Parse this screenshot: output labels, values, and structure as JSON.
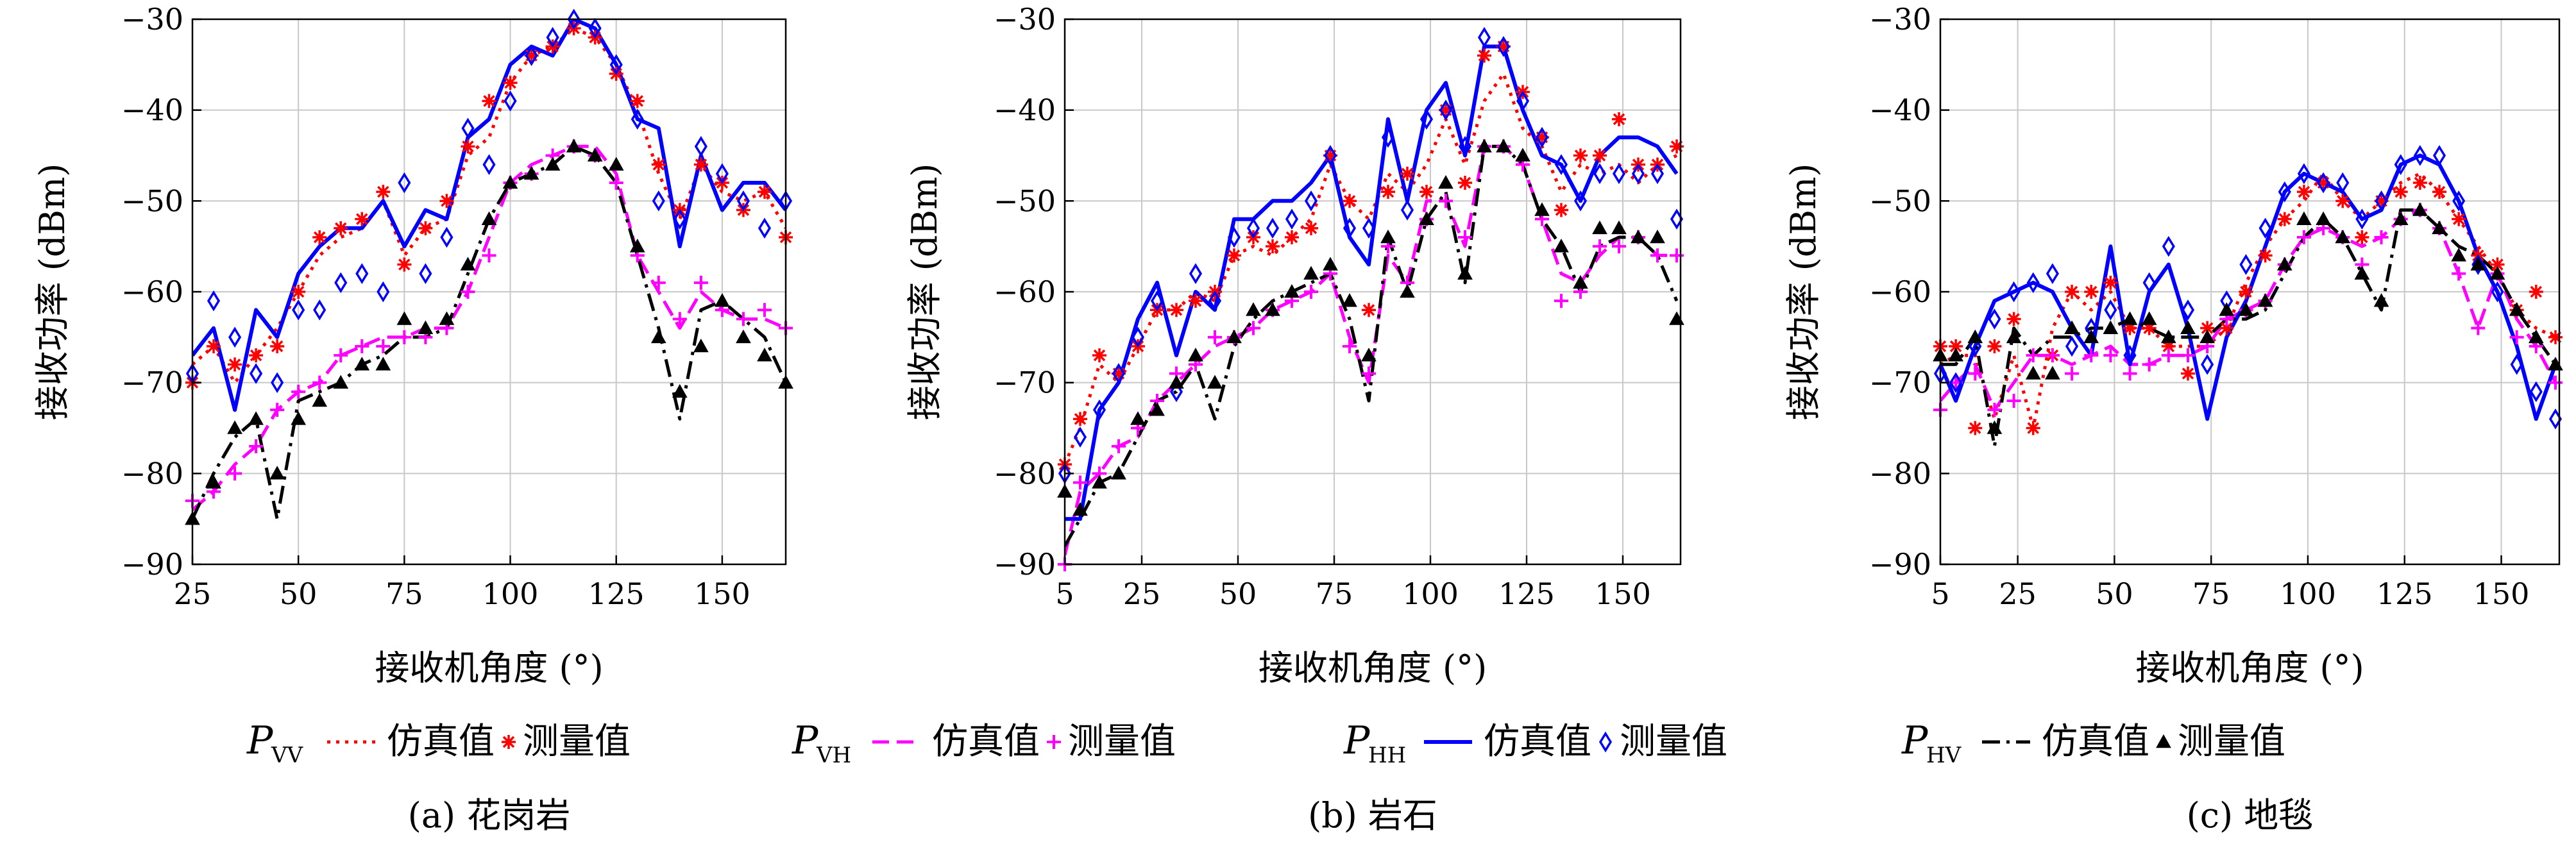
{
  "legend": {
    "groups": [
      {
        "symbol": "P",
        "subscript": "VV",
        "sim_label": "仿真值",
        "meas_label": "测量值",
        "color": "#ff0000",
        "dash": "dot",
        "marker": "asterisk"
      },
      {
        "symbol": "P",
        "subscript": "VH",
        "sim_label": "仿真值",
        "meas_label": "测量值",
        "color": "#ff00ff",
        "dash": "dash",
        "marker": "plus"
      },
      {
        "symbol": "P",
        "subscript": "HH",
        "sim_label": "仿真值",
        "meas_label": "测量值",
        "color": "#0000ff",
        "dash": "solid",
        "marker": "diamond"
      },
      {
        "symbol": "P",
        "subscript": "HV",
        "sim_label": "仿真值",
        "meas_label": "测量值",
        "color": "#000000",
        "dash": "dashdot",
        "marker": "triangle"
      }
    ]
  },
  "chart_data": [
    {
      "type": "line",
      "caption": "(a) 花岗岩",
      "xlabel": "接收机角度 (°)",
      "ylabel": "接收功率 (dBm)",
      "xlim": [
        25,
        165
      ],
      "ylim": [
        -90,
        -30
      ],
      "xticks": [
        25,
        50,
        75,
        100,
        125,
        150
      ],
      "yticks": [
        -30,
        -40,
        -50,
        -60,
        -70,
        -80,
        -90
      ],
      "x": [
        25,
        30,
        35,
        40,
        45,
        50,
        55,
        60,
        65,
        70,
        75,
        80,
        85,
        90,
        95,
        100,
        105,
        110,
        115,
        120,
        125,
        130,
        135,
        140,
        145,
        150,
        155,
        160,
        165
      ],
      "series": [
        {
          "key": "VV",
          "kind": "sim",
          "values": [
            -68,
            -66,
            -70,
            -67,
            -64,
            -60,
            -56,
            -54,
            -53,
            -50,
            -56,
            -53,
            -52,
            -45,
            -43,
            -37,
            -34,
            -33,
            -31,
            -32,
            -35,
            -40,
            -47,
            -52,
            -46,
            -49,
            -50,
            -49,
            -53
          ]
        },
        {
          "key": "VV",
          "kind": "meas",
          "values": [
            -70,
            -66,
            -68,
            -67,
            -66,
            -60,
            -54,
            -53,
            -52,
            -49,
            -57,
            -53,
            -50,
            -44,
            -39,
            -37,
            -34,
            -33,
            -31,
            -32,
            -36,
            -39,
            -46,
            -51,
            -46,
            -48,
            -51,
            -49,
            -54
          ]
        },
        {
          "key": "VH",
          "kind": "sim",
          "values": [
            -84,
            -82,
            -79,
            -77,
            -73,
            -71,
            -70,
            -67,
            -66,
            -65,
            -65,
            -64,
            -64,
            -60,
            -54,
            -48,
            -46,
            -45,
            -44,
            -44,
            -47,
            -56,
            -60,
            -64,
            -60,
            -62,
            -63,
            -63,
            -64
          ]
        },
        {
          "key": "VH",
          "kind": "meas",
          "values": [
            -83,
            -82,
            -80,
            -77,
            -73,
            -71,
            -70,
            -67,
            -66,
            -66,
            -65,
            -65,
            -64,
            -60,
            -56,
            -48,
            -47,
            -45,
            -44,
            -45,
            -48,
            -56,
            -59,
            -63,
            -59,
            -62,
            -63,
            -62,
            -64
          ]
        },
        {
          "key": "HH",
          "kind": "sim",
          "values": [
            -67,
            -64,
            -73,
            -62,
            -65,
            -58,
            -55,
            -53,
            -53,
            -50,
            -55,
            -51,
            -52,
            -43,
            -41,
            -35,
            -33,
            -34,
            -30,
            -31,
            -35,
            -41,
            -42,
            -55,
            -45,
            -51,
            -48,
            -48,
            -51
          ]
        },
        {
          "key": "HH",
          "kind": "meas",
          "values": [
            -69,
            -61,
            -65,
            -69,
            -70,
            -62,
            -62,
            -59,
            -58,
            -60,
            -48,
            -58,
            -54,
            -42,
            -46,
            -39,
            -34,
            -32,
            -30,
            -31,
            -35,
            -41,
            -50,
            -52,
            -44,
            -47,
            -50,
            -53,
            -50
          ]
        },
        {
          "key": "HV",
          "kind": "sim",
          "values": [
            -85,
            -80,
            -76,
            -74,
            -85,
            -72,
            -71,
            -70,
            -68,
            -67,
            -65,
            -65,
            -64,
            -58,
            -52,
            -48,
            -47,
            -46,
            -44,
            -45,
            -48,
            -56,
            -64,
            -74,
            -62,
            -61,
            -63,
            -65,
            -70
          ]
        },
        {
          "key": "HV",
          "kind": "meas",
          "values": [
            -85,
            -81,
            -75,
            -74,
            -80,
            -74,
            -72,
            -70,
            -68,
            -68,
            -63,
            -64,
            -63,
            -57,
            -52,
            -48,
            -47,
            -46,
            -44,
            -45,
            -46,
            -55,
            -65,
            -71,
            -66,
            -61,
            -65,
            -67,
            -70
          ]
        }
      ]
    },
    {
      "type": "line",
      "caption": "(b) 岩石",
      "xlabel": "接收机角度 (°)",
      "ylabel": "接收功率 (dBm)",
      "xlim": [
        5,
        165
      ],
      "ylim": [
        -90,
        -30
      ],
      "xticks": [
        5,
        25,
        50,
        75,
        100,
        125,
        150
      ],
      "yticks": [
        -30,
        -40,
        -50,
        -60,
        -70,
        -80,
        -90
      ],
      "x": [
        5,
        9,
        14,
        19,
        24,
        29,
        34,
        39,
        44,
        49,
        54,
        59,
        64,
        69,
        74,
        79,
        84,
        89,
        94,
        99,
        104,
        109,
        114,
        119,
        124,
        129,
        134,
        139,
        144,
        149,
        154,
        159,
        164
      ],
      "series": [
        {
          "key": "VV",
          "kind": "sim",
          "values": [
            -79,
            -75,
            -68,
            -70,
            -66,
            -62,
            -62,
            -60,
            -61,
            -56,
            -55,
            -56,
            -54,
            -52,
            -46,
            -50,
            -52,
            -47,
            -49,
            -46,
            -41,
            -46,
            -39,
            -36,
            -42,
            -44,
            -49,
            -46,
            -47,
            -46,
            -48,
            -46,
            -45
          ]
        },
        {
          "key": "VV",
          "kind": "meas",
          "values": [
            -79,
            -74,
            -67,
            -69,
            -66,
            -62,
            -62,
            -61,
            -60,
            -56,
            -54,
            -55,
            -54,
            -53,
            -45,
            -50,
            -62,
            -49,
            -47,
            -49,
            -40,
            -48,
            -34,
            -33,
            -38,
            -43,
            -51,
            -45,
            -45,
            -41,
            -46,
            -46,
            -44
          ]
        },
        {
          "key": "VH",
          "kind": "sim",
          "values": [
            -89,
            -82,
            -80,
            -77,
            -76,
            -72,
            -70,
            -68,
            -66,
            -65,
            -64,
            -62,
            -61,
            -60,
            -58,
            -65,
            -70,
            -56,
            -59,
            -50,
            -50,
            -55,
            -44,
            -44,
            -46,
            -52,
            -58,
            -59,
            -56,
            -54,
            -54,
            -56,
            -56
          ]
        },
        {
          "key": "VH",
          "kind": "meas",
          "values": [
            -90,
            -81,
            -80,
            -77,
            -75,
            -72,
            -69,
            -68,
            -65,
            -65,
            -64,
            -62,
            -61,
            -60,
            -58,
            -66,
            -69,
            -55,
            -59,
            -52,
            -50,
            -54,
            -44,
            -44,
            -46,
            -52,
            -61,
            -60,
            -55,
            -55,
            -54,
            -56,
            -56
          ]
        },
        {
          "key": "HH",
          "kind": "sim",
          "values": [
            -85,
            -85,
            -73,
            -70,
            -63,
            -59,
            -67,
            -60,
            -62,
            -52,
            -52,
            -50,
            -50,
            -48,
            -45,
            -54,
            -57,
            -41,
            -50,
            -40,
            -37,
            -45,
            -33,
            -33,
            -40,
            -45,
            -46,
            -50,
            -45,
            -43,
            -43,
            -44,
            -47
          ]
        },
        {
          "key": "HH",
          "kind": "meas",
          "values": [
            -80,
            -76,
            -73,
            -69,
            -65,
            -61,
            -71,
            -58,
            -61,
            -54,
            -53,
            -53,
            -52,
            -50,
            -45,
            -53,
            -53,
            -43,
            -51,
            -41,
            -40,
            -44,
            -32,
            -33,
            -39,
            -43,
            -46,
            -50,
            -47,
            -47,
            -47,
            -47,
            -52
          ]
        },
        {
          "key": "HV",
          "kind": "sim",
          "values": [
            -88,
            -85,
            -81,
            -80,
            -76,
            -72,
            -71,
            -68,
            -74,
            -66,
            -63,
            -61,
            -60,
            -59,
            -58,
            -63,
            -72,
            -54,
            -60,
            -52,
            -49,
            -59,
            -44,
            -44,
            -46,
            -52,
            -55,
            -60,
            -55,
            -54,
            -54,
            -56,
            -61
          ]
        },
        {
          "key": "HV",
          "kind": "meas",
          "values": [
            -82,
            -84,
            -81,
            -80,
            -74,
            -73,
            -70,
            -67,
            -70,
            -65,
            -62,
            -62,
            -60,
            -58,
            -57,
            -61,
            -67,
            -54,
            -60,
            -52,
            -48,
            -58,
            -44,
            -44,
            -45,
            -51,
            -55,
            -59,
            -53,
            -53,
            -54,
            -54,
            -63
          ]
        }
      ]
    },
    {
      "type": "line",
      "caption": "(c) 地毯",
      "xlabel": "接收机角度 (°)",
      "ylabel": "接收功率 (dBm)",
      "xlim": [
        5,
        165
      ],
      "ylim": [
        -90,
        -30
      ],
      "xticks": [
        5,
        25,
        50,
        75,
        100,
        125,
        150
      ],
      "yticks": [
        -30,
        -40,
        -50,
        -60,
        -70,
        -80,
        -90
      ],
      "x": [
        5,
        9,
        14,
        19,
        24,
        29,
        34,
        39,
        44,
        49,
        54,
        59,
        64,
        69,
        74,
        79,
        84,
        89,
        94,
        99,
        104,
        109,
        114,
        119,
        124,
        129,
        134,
        139,
        144,
        149,
        154,
        159,
        164
      ],
      "series": [
        {
          "key": "VV",
          "kind": "sim",
          "values": [
            -68,
            -67,
            -67,
            -74,
            -67,
            -75,
            -64,
            -60,
            -62,
            -60,
            -64,
            -64,
            -66,
            -66,
            -66,
            -64,
            -59,
            -55,
            -52,
            -50,
            -47,
            -50,
            -52,
            -50,
            -48,
            -47,
            -49,
            -52,
            -55,
            -58,
            -62,
            -64,
            -65
          ]
        },
        {
          "key": "VV",
          "kind": "meas",
          "values": [
            -66,
            -66,
            -75,
            -66,
            -63,
            -75,
            -67,
            -60,
            -60,
            -59,
            -64,
            -64,
            -66,
            -69,
            -64,
            -64,
            -60,
            -56,
            -52,
            -49,
            -48,
            -50,
            -54,
            -50,
            -49,
            -48,
            -49,
            -52,
            -56,
            -57,
            -62,
            -60,
            -65
          ]
        },
        {
          "key": "VH",
          "kind": "sim",
          "values": [
            -72,
            -70,
            -68,
            -73,
            -70,
            -67,
            -67,
            -68,
            -67,
            -66,
            -68,
            -68,
            -67,
            -67,
            -66,
            -63,
            -62,
            -61,
            -57,
            -54,
            -53,
            -54,
            -55,
            -54,
            -52,
            -51,
            -53,
            -58,
            -64,
            -58,
            -63,
            -66,
            -70
          ]
        },
        {
          "key": "VH",
          "kind": "meas",
          "values": [
            -73,
            -70,
            -69,
            -73,
            -72,
            -67,
            -67,
            -69,
            -67,
            -67,
            -69,
            -68,
            -67,
            -67,
            -66,
            -63,
            -62,
            -61,
            -57,
            -54,
            -53,
            -54,
            -57,
            -54,
            -52,
            -51,
            -53,
            -58,
            -64,
            -58,
            -65,
            -66,
            -70
          ]
        },
        {
          "key": "HH",
          "kind": "sim",
          "values": [
            -68,
            -72,
            -66,
            -61,
            -60,
            -59,
            -60,
            -64,
            -67,
            -55,
            -68,
            -60,
            -57,
            -64,
            -74,
            -65,
            -61,
            -55,
            -49,
            -47,
            -48,
            -49,
            -52,
            -51,
            -46,
            -45,
            -46,
            -50,
            -56,
            -60,
            -66,
            -74,
            -68
          ]
        },
        {
          "key": "HH",
          "kind": "meas",
          "values": [
            -69,
            -70,
            -66,
            -63,
            -60,
            -59,
            -58,
            -66,
            -64,
            -62,
            -67,
            -59,
            -55,
            -62,
            -68,
            -61,
            -57,
            -53,
            -49,
            -47,
            -48,
            -48,
            -52,
            -50,
            -46,
            -45,
            -45,
            -50,
            -57,
            -60,
            -68,
            -71,
            -74
          ]
        },
        {
          "key": "HV",
          "kind": "sim",
          "values": [
            -68,
            -68,
            -65,
            -77,
            -64,
            -67,
            -65,
            -65,
            -64,
            -64,
            -63,
            -64,
            -65,
            -65,
            -65,
            -63,
            -63,
            -62,
            -58,
            -54,
            -52,
            -54,
            -58,
            -62,
            -51,
            -51,
            -53,
            -55,
            -56,
            -58,
            -62,
            -65,
            -68
          ]
        },
        {
          "key": "HV",
          "kind": "meas",
          "values": [
            -67,
            -67,
            -65,
            -75,
            -65,
            -69,
            -69,
            -64,
            -65,
            -64,
            -63,
            -63,
            -65,
            -64,
            -65,
            -62,
            -62,
            -61,
            -57,
            -52,
            -52,
            -54,
            -58,
            -61,
            -52,
            -51,
            -53,
            -56,
            -57,
            -58,
            -62,
            -65,
            -68
          ]
        }
      ]
    }
  ]
}
